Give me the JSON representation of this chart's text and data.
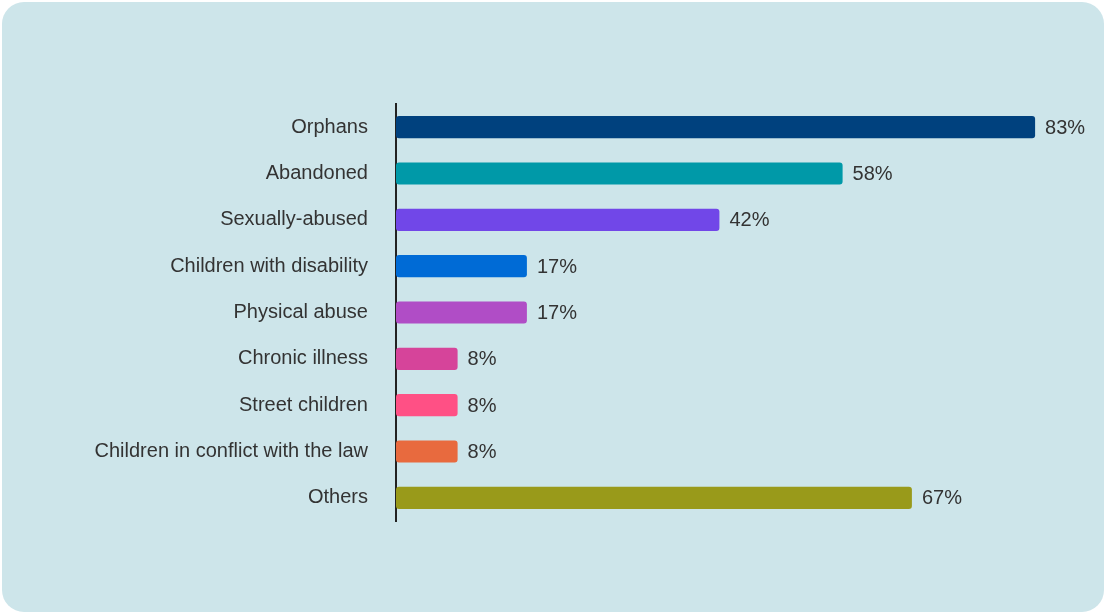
{
  "chart_data": {
    "type": "bar",
    "orientation": "horizontal",
    "categories": [
      "Orphans",
      "Abandoned",
      "Sexually-abused",
      "Children with disability",
      "Physical abuse",
      "Chronic illness",
      "Street children",
      "Children in conflict with the law",
      "Others"
    ],
    "values": [
      83,
      58,
      42,
      17,
      17,
      8,
      8,
      8,
      67
    ],
    "colors": [
      "#00417e",
      "#0099a8",
      "#7147e8",
      "#006bd6",
      "#b04dc6",
      "#d6449a",
      "#ff5085",
      "#e86a3e",
      "#999a1a"
    ],
    "value_labels": [
      "83%",
      "58%",
      "42%",
      "17%",
      "17%",
      "8%",
      "8%",
      "8%",
      "67%"
    ]
  }
}
